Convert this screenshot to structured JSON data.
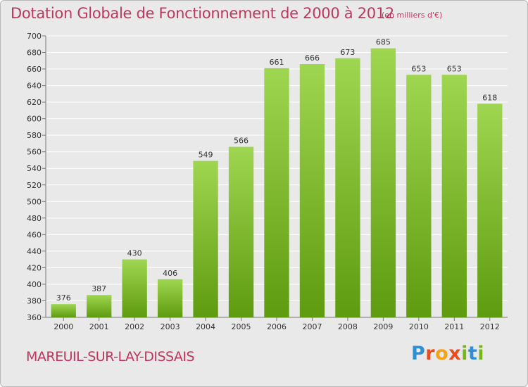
{
  "header": {
    "title": "Dotation Globale de Fonctionnement de 2000 à 2012",
    "subtitle": "(en milliers d'€)"
  },
  "footer": {
    "commune": "MAREUIL-SUR-LAY-DISSAIS",
    "logo_letters": [
      "P",
      "r",
      "o",
      "x",
      "i",
      "t",
      "i"
    ],
    "logo_colors": [
      "#2e8fd6",
      "#e84c1f",
      "#f4a218",
      "#e84c1f",
      "#7ab51d",
      "#2e8fd6",
      "#7ab51d"
    ]
  },
  "colors": {
    "title": "#c0365f",
    "bar_top": "#9fd651",
    "bar_bottom": "#5e9b0f",
    "plot_bg": "#e9e9e9",
    "grid": "#ffffff",
    "tick_text": "#333333"
  },
  "chart_data": {
    "type": "bar",
    "title": "Dotation Globale de Fonctionnement de 2000 à 2012",
    "subtitle": "(en milliers d'€)",
    "categories": [
      "2000",
      "2001",
      "2002",
      "2003",
      "2004",
      "2005",
      "2006",
      "2007",
      "2008",
      "2009",
      "2010",
      "2011",
      "2012"
    ],
    "values": [
      376,
      387,
      430,
      406,
      549,
      566,
      661,
      666,
      673,
      685,
      653,
      653,
      618
    ],
    "xlabel": "",
    "ylabel": "",
    "ylim": [
      360,
      700
    ],
    "yticks": [
      360,
      380,
      400,
      420,
      440,
      460,
      480,
      500,
      520,
      540,
      560,
      580,
      600,
      620,
      640,
      660,
      680,
      700
    ],
    "grid": true,
    "legend": "none"
  }
}
